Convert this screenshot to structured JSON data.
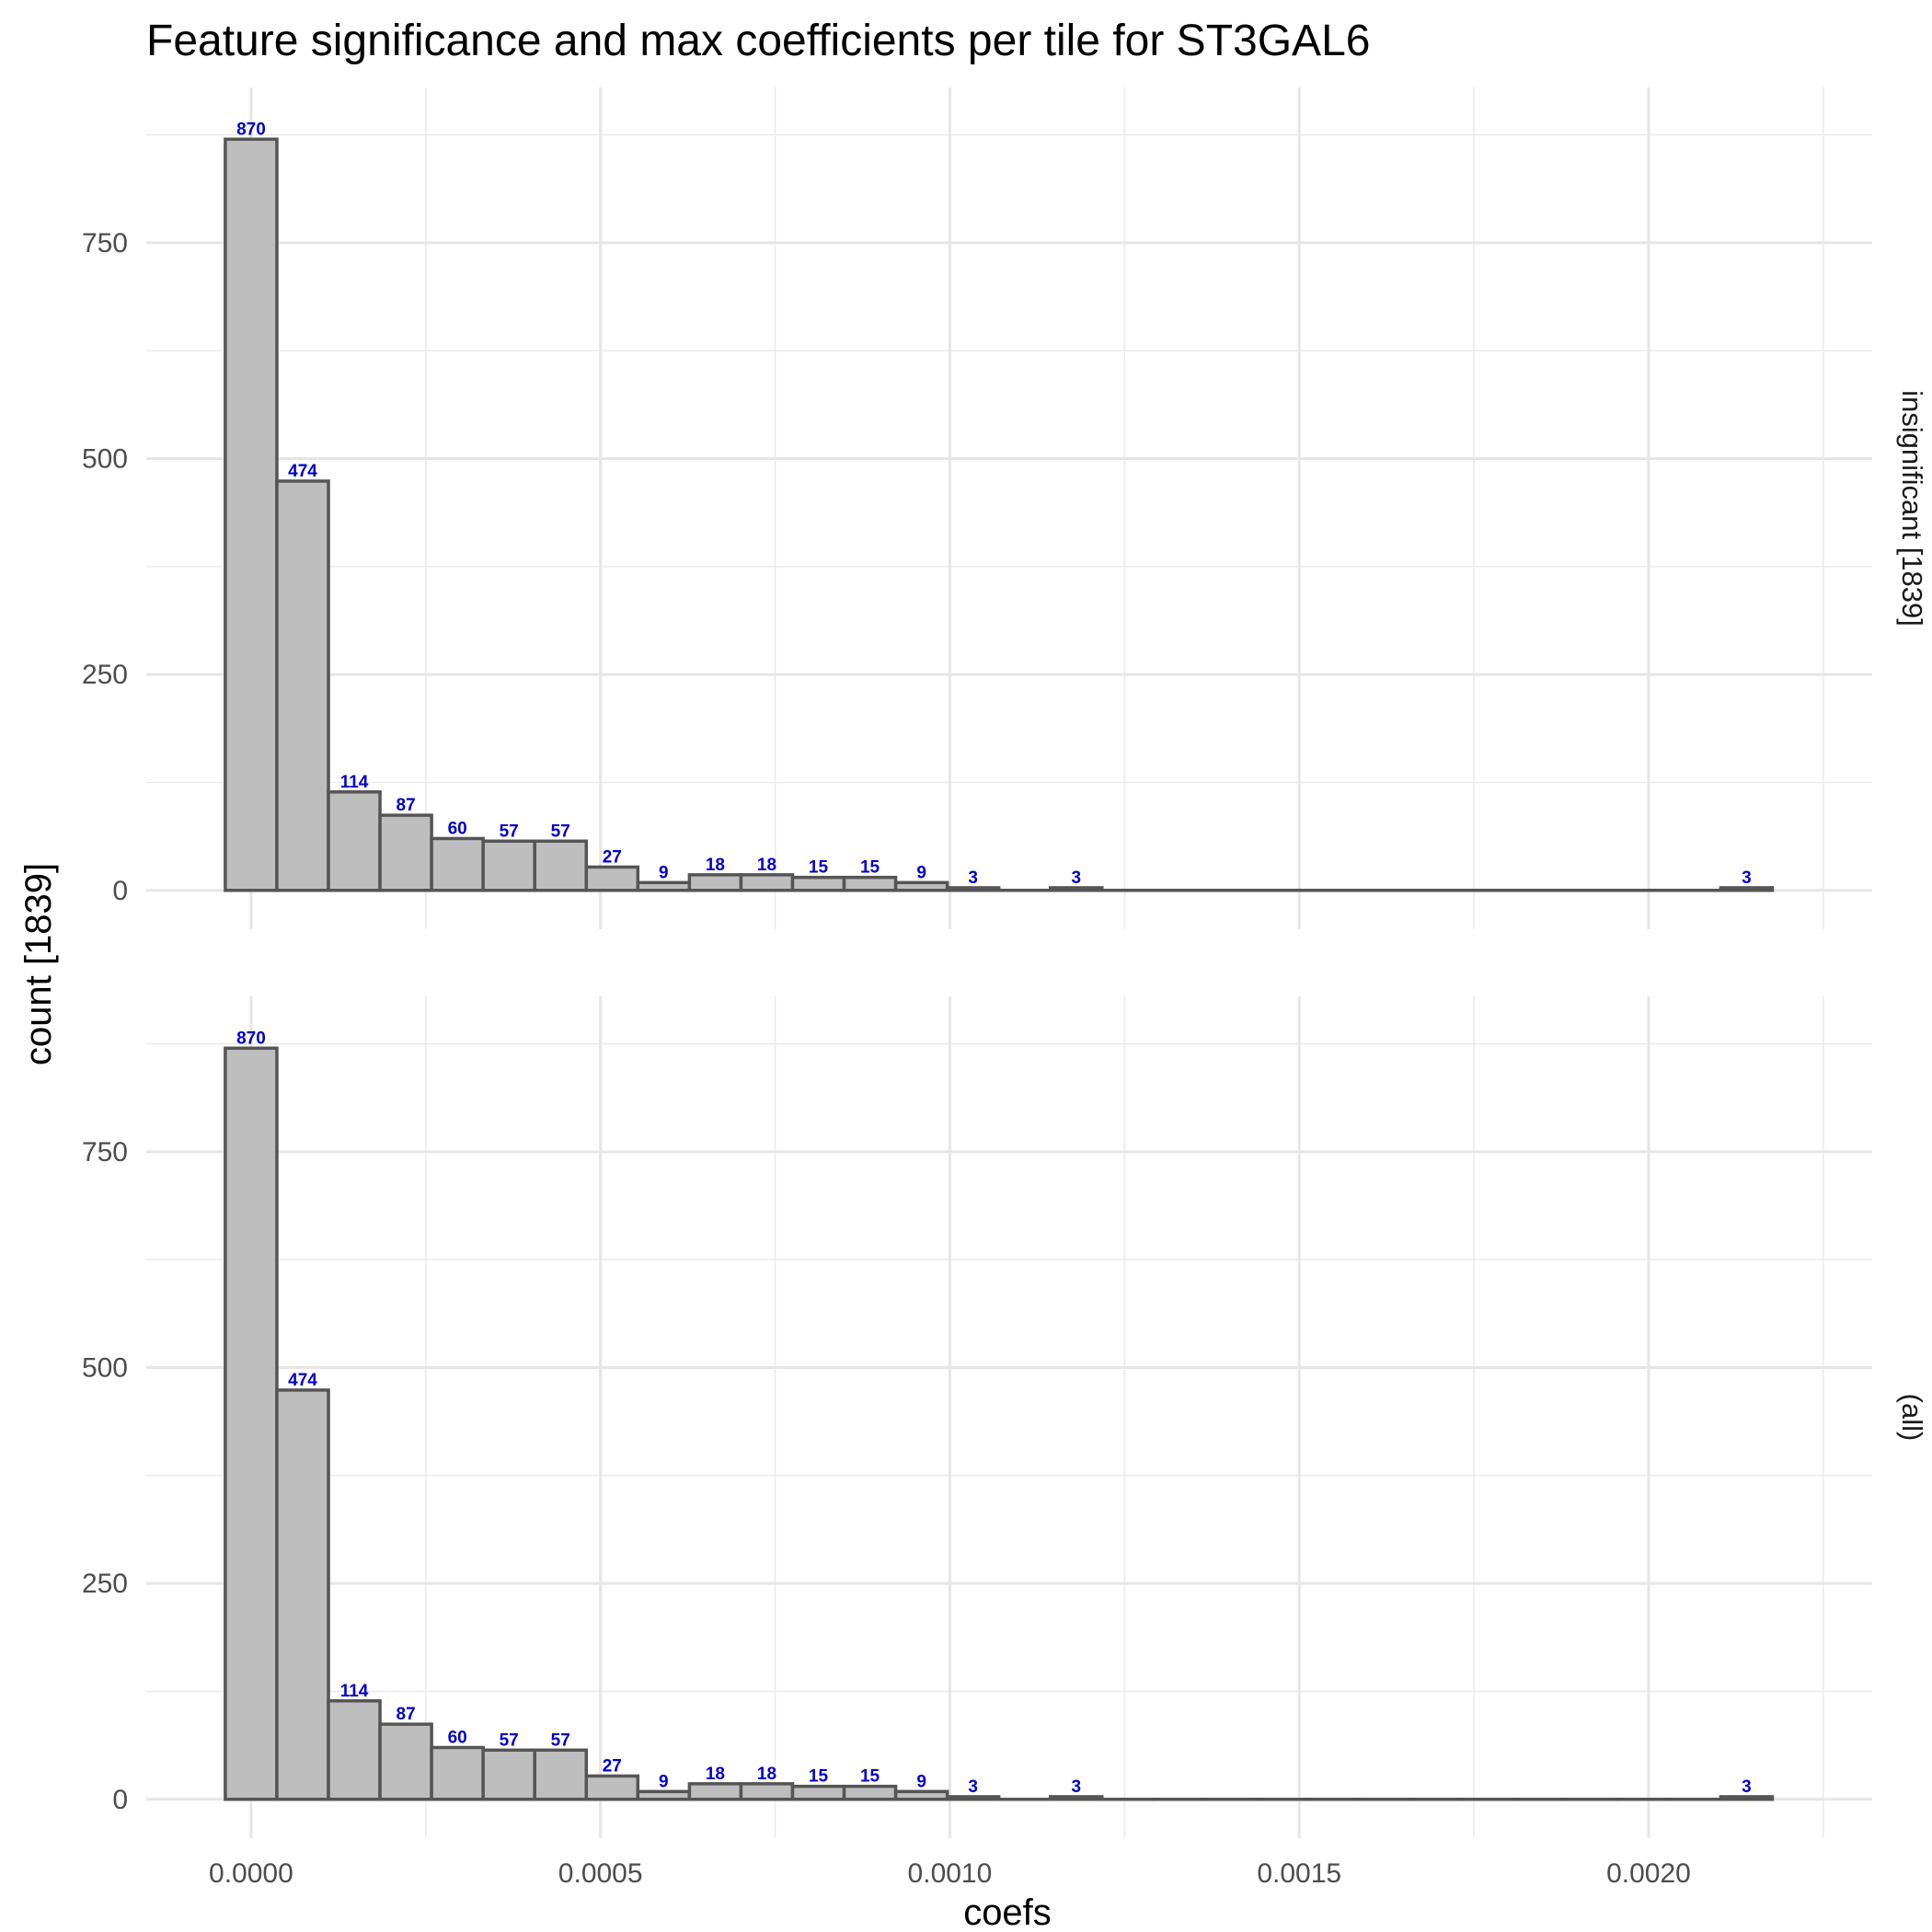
{
  "chart_data": {
    "type": "bar",
    "title": "Feature significance and max coefficients per tile for ST3GAL6",
    "xlabel": "coefs",
    "ylabel": "count [1839]",
    "xlim": [
      -0.00015,
      0.00232
    ],
    "ylim": [
      -45,
      930
    ],
    "x_ticks": [
      0,
      0.0005,
      0.001,
      0.0015,
      0.002
    ],
    "x_tick_labels": [
      "0.0000",
      "0.0005",
      "0.0010",
      "0.0015",
      "0.0020"
    ],
    "y_ticks": [
      0,
      250,
      500,
      750
    ],
    "y_tick_labels": [
      "0",
      "250",
      "500",
      "750"
    ],
    "grid": true,
    "bin_width": 7.38e-05,
    "bin_centers": [
      0,
      7.38e-05,
      0.0001476,
      0.0002214,
      0.0002952,
      0.000369,
      0.0004428,
      0.0005166,
      0.0005904,
      0.0006642,
      0.000738,
      0.0008118,
      0.0008856,
      0.0009594,
      0.0010332,
      0.001107,
      0.0011808,
      0.0012546,
      0.0013284,
      0.0014022,
      0.001476,
      0.0015498,
      0.0016236,
      0.0016974,
      0.0017712,
      0.001845,
      0.0019188,
      0.0019926,
      0.0020664,
      0.0021402
    ],
    "bar_fill": "#bebebe",
    "bar_stroke": "#555555",
    "label_color": "#0000cc",
    "facets": [
      {
        "name": "insignificant [1839]",
        "values": [
          870,
          474,
          114,
          87,
          60,
          57,
          57,
          27,
          9,
          18,
          18,
          15,
          15,
          9,
          3,
          0,
          3,
          0,
          0,
          0,
          0,
          0,
          0,
          0,
          0,
          0,
          0,
          0,
          0,
          3
        ],
        "labels": [
          "870",
          "474",
          "114",
          "87",
          "60",
          "57",
          "57",
          "27",
          "9",
          "18",
          "18",
          "15",
          "15",
          "9",
          "3",
          "",
          "3",
          "",
          "",
          "",
          "",
          "",
          "",
          "",
          "",
          "",
          "",
          "",
          "",
          "3"
        ]
      },
      {
        "name": "(all)",
        "values": [
          870,
          474,
          114,
          87,
          60,
          57,
          57,
          27,
          9,
          18,
          18,
          15,
          15,
          9,
          3,
          0,
          3,
          0,
          0,
          0,
          0,
          0,
          0,
          0,
          0,
          0,
          0,
          0,
          0,
          3
        ],
        "labels": [
          "870",
          "474",
          "114",
          "87",
          "60",
          "57",
          "57",
          "27",
          "9",
          "18",
          "18",
          "15",
          "15",
          "9",
          "3",
          "",
          "3",
          "",
          "",
          "",
          "",
          "",
          "",
          "",
          "",
          "",
          "",
          "",
          "",
          "3"
        ]
      }
    ]
  }
}
